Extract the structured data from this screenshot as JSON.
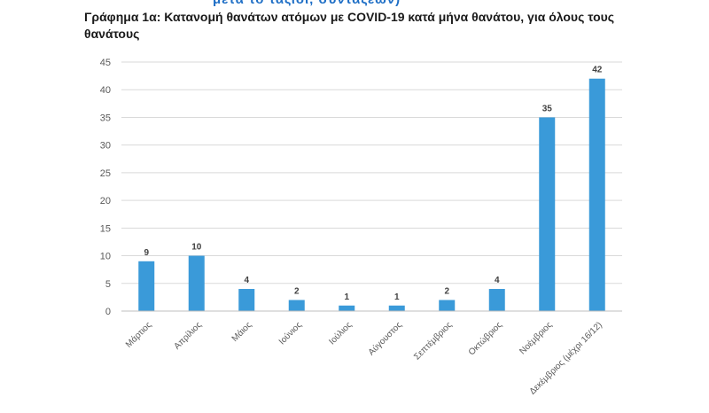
{
  "header": {
    "top_strip_text": "μετά το ταξίδι, συντάξεων)",
    "title": "Γράφημα 1α: Κατανομή θανάτων ατόμων με COVID-19 κατά μήνα θανάτου, για όλους τους θανάτους"
  },
  "colors": {
    "bar": "#3a9ad9",
    "grid": "#d9d9d9",
    "axis": "#bfbfbf"
  },
  "chart_data": {
    "type": "bar",
    "title": "Γράφημα 1α: Κατανομή θανάτων ατόμων με COVID-19 κατά μήνα θανάτου, για όλους τους θανάτους",
    "categories": [
      "Μάρτιος",
      "Απρίλιος",
      "Μάιος",
      "Ιούνιος",
      "Ιούλιος",
      "Αύγουστος",
      "Σεπτέμβριος",
      "Οκτώβριος",
      "Νοέμβριος",
      "Δεκέμβριος (μέχρι 16/12)"
    ],
    "values": [
      9,
      10,
      4,
      2,
      1,
      1,
      2,
      4,
      35,
      42
    ],
    "yticks": [
      0,
      5,
      10,
      15,
      20,
      25,
      30,
      35,
      40,
      45
    ],
    "ylim": [
      0,
      45
    ],
    "xlabel": "",
    "ylabel": "",
    "grid": true,
    "data_labels": true,
    "legend": "none"
  }
}
